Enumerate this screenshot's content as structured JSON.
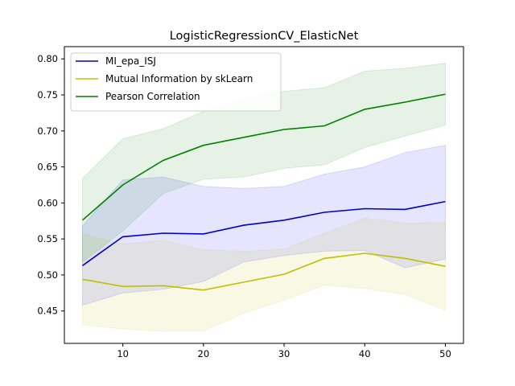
{
  "chart_data": {
    "type": "line",
    "title": "LogisticRegressionCV_ElasticNet",
    "xlabel": "",
    "ylabel": "",
    "xlim": [
      2.75,
      52.25
    ],
    "ylim": [
      0.405,
      0.817
    ],
    "x_ticks": [
      10,
      20,
      30,
      40,
      50
    ],
    "y_ticks": [
      0.45,
      0.5,
      0.55,
      0.6,
      0.65,
      0.7,
      0.75,
      0.8
    ],
    "grid": false,
    "legend_position": "top-left",
    "x": [
      5,
      10,
      15,
      20,
      25,
      30,
      35,
      40,
      45,
      50
    ],
    "series": [
      {
        "name": "MI_epa_ISJ",
        "color": "#0000cc",
        "fill": "#0000ff",
        "values": [
          0.513,
          0.553,
          0.558,
          0.557,
          0.569,
          0.576,
          0.587,
          0.592,
          0.591,
          0.602
        ],
        "upper": [
          0.568,
          0.632,
          0.636,
          0.623,
          0.62,
          0.623,
          0.64,
          0.65,
          0.67,
          0.68
        ],
        "lower": [
          0.458,
          0.475,
          0.48,
          0.491,
          0.518,
          0.527,
          0.533,
          0.534,
          0.51,
          0.522
        ]
      },
      {
        "name": "Mutual Information by skLearn",
        "color": "#bfbf00",
        "fill": "#bfbf00",
        "values": [
          0.494,
          0.484,
          0.485,
          0.479,
          0.49,
          0.501,
          0.523,
          0.53,
          0.523,
          0.512
        ],
        "upper": [
          0.557,
          0.543,
          0.548,
          0.535,
          0.533,
          0.536,
          0.558,
          0.579,
          0.572,
          0.573
        ],
        "lower": [
          0.431,
          0.425,
          0.422,
          0.422,
          0.447,
          0.465,
          0.486,
          0.481,
          0.473,
          0.451
        ]
      },
      {
        "name": "Pearson Correlation",
        "color": "#008000",
        "fill": "#008000",
        "values": [
          0.576,
          0.625,
          0.659,
          0.68,
          0.691,
          0.702,
          0.707,
          0.73,
          0.74,
          0.751
        ],
        "upper": [
          0.634,
          0.689,
          0.703,
          0.727,
          0.745,
          0.755,
          0.76,
          0.783,
          0.787,
          0.794
        ],
        "lower": [
          0.518,
          0.561,
          0.613,
          0.633,
          0.636,
          0.648,
          0.653,
          0.677,
          0.693,
          0.708
        ]
      }
    ]
  }
}
